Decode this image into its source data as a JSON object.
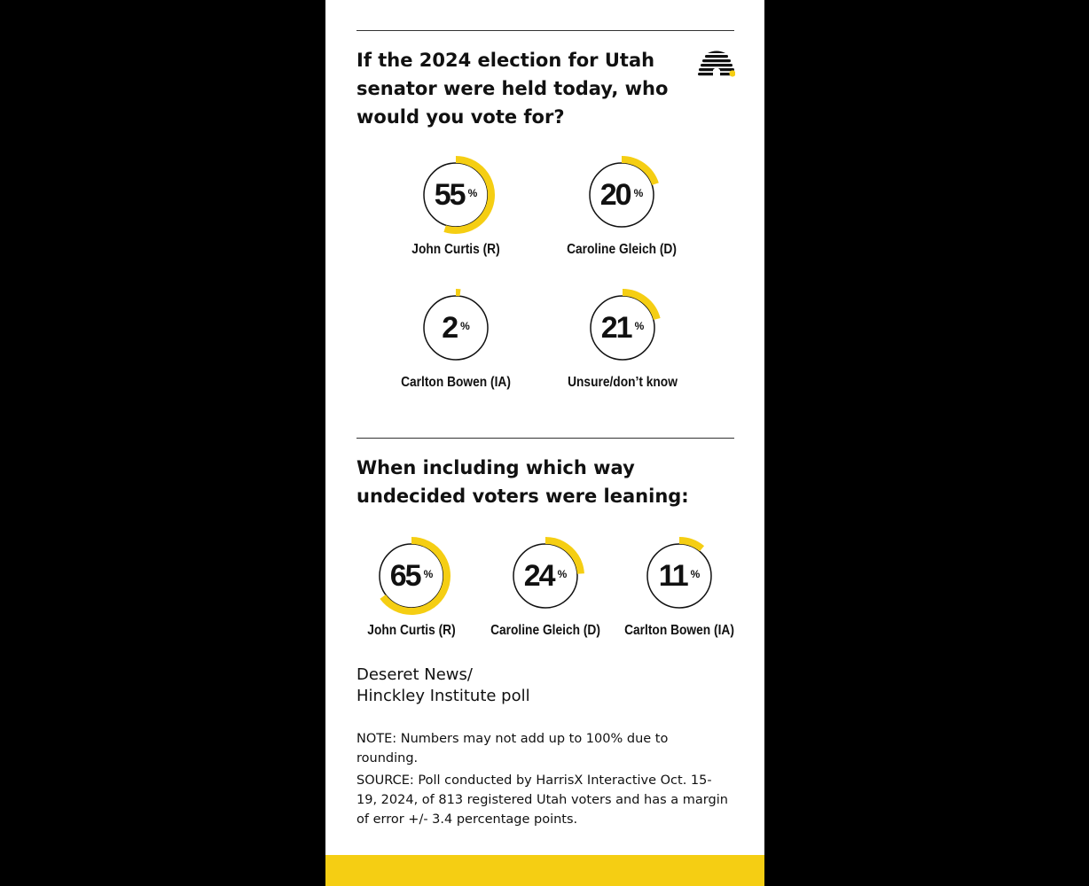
{
  "colors": {
    "accent": "#f5ce13",
    "ring_outline": "#111111",
    "background": "#ffffff",
    "frame": "#000000"
  },
  "logo_icon": "beehive-icon",
  "section1": {
    "title": "If the 2024 election for Utah senator were held today, who would you vote for?"
  },
  "section2": {
    "title": "When including which way undecided voters were leaning:"
  },
  "percent_symbol": "%",
  "chart_data": [
    {
      "type": "donut",
      "title": "If the 2024 election for Utah senator were held today, who would you vote for?",
      "categories": [
        "John Curtis (R)",
        "Caroline Gleich (D)",
        "Carlton Bowen (IA)",
        "Unsure/don’t know"
      ],
      "values": [
        55,
        20,
        2,
        21
      ],
      "unit": "%"
    },
    {
      "type": "donut",
      "title": "When including which way undecided voters were leaning:",
      "categories": [
        "John Curtis (R)",
        "Caroline Gleich (D)",
        "Carlton Bowen (IA)"
      ],
      "values": [
        65,
        24,
        11
      ],
      "unit": "%"
    }
  ],
  "credit": {
    "line1": "Deseret News/",
    "line2": "Hinckley Institute poll"
  },
  "note": "NOTE: Numbers may not add up to 100% due to rounding.",
  "source": "SOURCE: Poll conducted by HarrisX Interactive Oct. 15-19, 2024, of 813 registered Utah voters and has a margin of error +/- 3.4 percentage points."
}
